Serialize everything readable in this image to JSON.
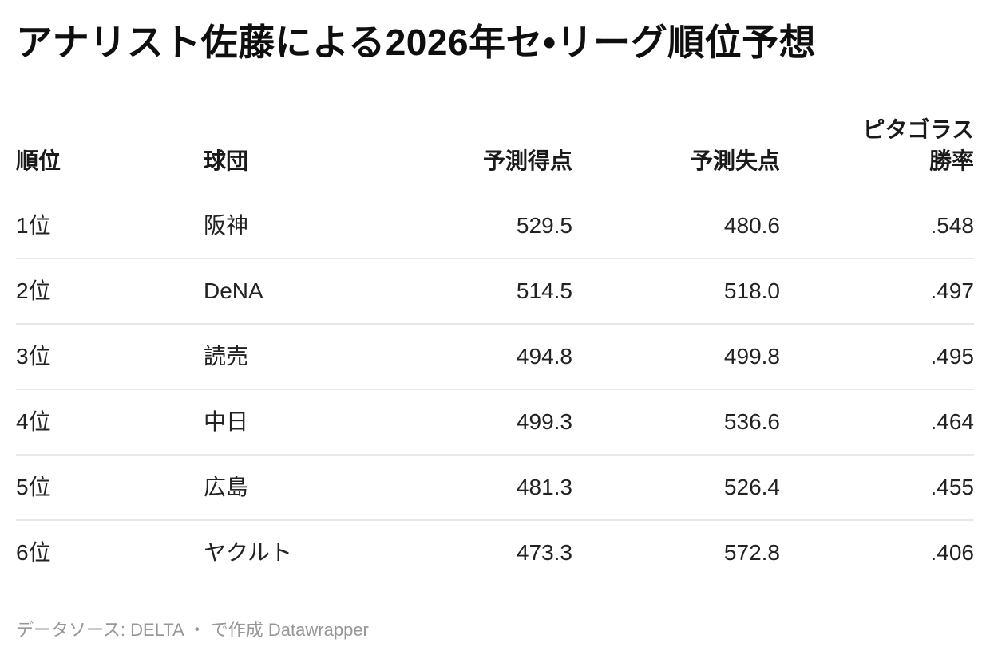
{
  "title": "アナリスト佐藤による2026年セ•リーグ順位予想",
  "table": {
    "columns": [
      {
        "key": "rank",
        "label": "順位",
        "align": "left"
      },
      {
        "key": "team",
        "label": "球団",
        "align": "left"
      },
      {
        "key": "runs_scored",
        "label": "予測得点",
        "align": "right"
      },
      {
        "key": "runs_allowed",
        "label": "予測失点",
        "align": "right"
      },
      {
        "key": "pythag",
        "label": "ピタゴラス\n勝率",
        "align": "right"
      }
    ],
    "rows": [
      {
        "rank": "1位",
        "team": "阪神",
        "runs_scored": "529.5",
        "runs_allowed": "480.6",
        "pythag": ".548"
      },
      {
        "rank": "2位",
        "team": "DeNA",
        "runs_scored": "514.5",
        "runs_allowed": "518.0",
        "pythag": ".497"
      },
      {
        "rank": "3位",
        "team": "読売",
        "runs_scored": "494.8",
        "runs_allowed": "499.8",
        "pythag": ".495"
      },
      {
        "rank": "4位",
        "team": "中日",
        "runs_scored": "499.3",
        "runs_allowed": "536.6",
        "pythag": ".464"
      },
      {
        "rank": "5位",
        "team": "広島",
        "runs_scored": "481.3",
        "runs_allowed": "526.4",
        "pythag": ".455"
      },
      {
        "rank": "6位",
        "team": "ヤクルト",
        "runs_scored": "473.3",
        "runs_allowed": "572.8",
        "pythag": ".406"
      }
    ]
  },
  "footer": {
    "source_label": "データソース: ",
    "source_link": "DELTA",
    "middle_text": " ・ で作成 ",
    "brand_link": "Datawrapper"
  },
  "colors": {
    "title_text": "#0f0f0f",
    "header_text": "#1a1a1a",
    "cell_text": "#222222",
    "row_border": "#e8e8e8",
    "footer_text": "#979797",
    "background": "#ffffff"
  },
  "chart_data": {
    "type": "table",
    "title": "アナリスト佐藤による2026年セ•リーグ順位予想",
    "columns": [
      "順位",
      "球団",
      "予測得点",
      "予測失点",
      "ピタゴラス勝率"
    ],
    "rows": [
      [
        "1位",
        "阪神",
        529.5,
        480.6,
        0.548
      ],
      [
        "2位",
        "DeNA",
        514.5,
        518.0,
        0.497
      ],
      [
        "3位",
        "読売",
        494.8,
        499.8,
        0.495
      ],
      [
        "4位",
        "中日",
        499.3,
        536.6,
        0.464
      ],
      [
        "5位",
        "広島",
        481.3,
        526.4,
        0.455
      ],
      [
        "6位",
        "ヤクルト",
        473.3,
        572.8,
        0.406
      ]
    ],
    "column_alignments": [
      "left",
      "left",
      "right",
      "right",
      "right"
    ],
    "source": "DELTA",
    "created_with": "Datawrapper"
  }
}
